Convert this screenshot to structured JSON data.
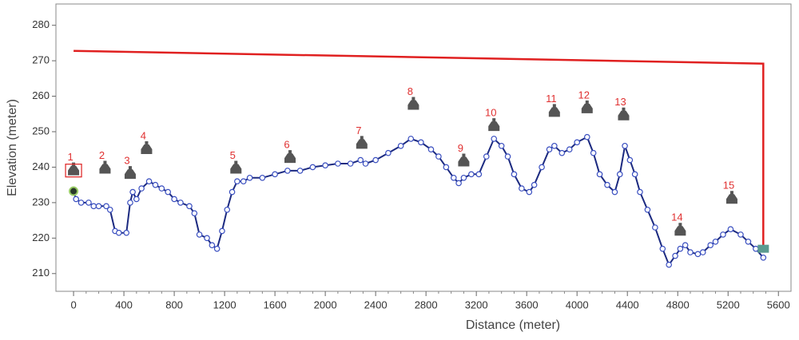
{
  "chart_data": {
    "type": "line",
    "xlabel": "Distance (meter)",
    "ylabel": "Elevation (meter)",
    "xlim": [
      -140,
      5700
    ],
    "ylim": [
      205,
      286
    ],
    "xticks": [
      0,
      400,
      800,
      1200,
      1600,
      2000,
      2400,
      2800,
      3200,
      3600,
      4000,
      4400,
      4800,
      5200,
      5600
    ],
    "yticks": [
      210,
      220,
      230,
      240,
      250,
      260,
      270,
      280
    ],
    "x": [
      0,
      20,
      60,
      120,
      160,
      200,
      260,
      290,
      330,
      360,
      420,
      450,
      470,
      500,
      540,
      600,
      650,
      700,
      750,
      800,
      850,
      920,
      960,
      1000,
      1060,
      1100,
      1140,
      1180,
      1220,
      1260,
      1300,
      1350,
      1400,
      1500,
      1600,
      1700,
      1800,
      1900,
      2000,
      2100,
      2200,
      2280,
      2320,
      2400,
      2500,
      2600,
      2680,
      2760,
      2840,
      2900,
      2960,
      3020,
      3060,
      3100,
      3160,
      3220,
      3280,
      3340,
      3400,
      3450,
      3500,
      3560,
      3620,
      3660,
      3720,
      3780,
      3820,
      3880,
      3940,
      4000,
      4080,
      4130,
      4180,
      4240,
      4300,
      4340,
      4380,
      4420,
      4460,
      4500,
      4560,
      4620,
      4680,
      4730,
      4780,
      4820,
      4860,
      4900,
      4960,
      5000,
      5060,
      5100,
      5160,
      5220,
      5300,
      5360,
      5420,
      5480
    ],
    "series": [
      {
        "color": "#1c2a80",
        "values": [
          233,
          231,
          230,
          230,
          229,
          229,
          229,
          228,
          222,
          221.5,
          221.5,
          230,
          233,
          231,
          234,
          236,
          235,
          234,
          233,
          231,
          230,
          229,
          227,
          221,
          220,
          218,
          217,
          222,
          228,
          233,
          236,
          236,
          237,
          237,
          238,
          239,
          239,
          240,
          240.5,
          241,
          241,
          242,
          241,
          242,
          244,
          246,
          248,
          247,
          245,
          243,
          240,
          237,
          235.5,
          237,
          238,
          238,
          243,
          248,
          246,
          243,
          238,
          234,
          233,
          235,
          240,
          245,
          246,
          244,
          245,
          247,
          248.5,
          244,
          238,
          235,
          233,
          238,
          246,
          242,
          238,
          233,
          228,
          223,
          217,
          212.5,
          215,
          217,
          218,
          216,
          215.5,
          216,
          218,
          219,
          221,
          222.5,
          221,
          219,
          217,
          214.5
        ]
      }
    ],
    "pipeline": {
      "color": "#e02020",
      "x": [
        0,
        5480,
        5480
      ],
      "values": [
        272.8,
        269.2,
        217
      ]
    },
    "annotations": [
      {
        "text": "1",
        "x": 0,
        "y": 239.5
      },
      {
        "text": "2",
        "x": 250,
        "y": 240
      },
      {
        "text": "3",
        "x": 450,
        "y": 238.5
      },
      {
        "text": "4",
        "x": 580,
        "y": 245.5
      },
      {
        "text": "5",
        "x": 1290,
        "y": 240
      },
      {
        "text": "6",
        "x": 1720,
        "y": 243
      },
      {
        "text": "7",
        "x": 2290,
        "y": 247
      },
      {
        "text": "8",
        "x": 2700,
        "y": 258
      },
      {
        "text": "9",
        "x": 3100,
        "y": 242
      },
      {
        "text": "10",
        "x": 3340,
        "y": 252
      },
      {
        "text": "11",
        "x": 3820,
        "y": 256
      },
      {
        "text": "12",
        "x": 4080,
        "y": 257
      },
      {
        "text": "13",
        "x": 4370,
        "y": 255
      },
      {
        "text": "14",
        "x": 4820,
        "y": 222.5
      },
      {
        "text": "15",
        "x": 5230,
        "y": 231.5
      }
    ]
  }
}
